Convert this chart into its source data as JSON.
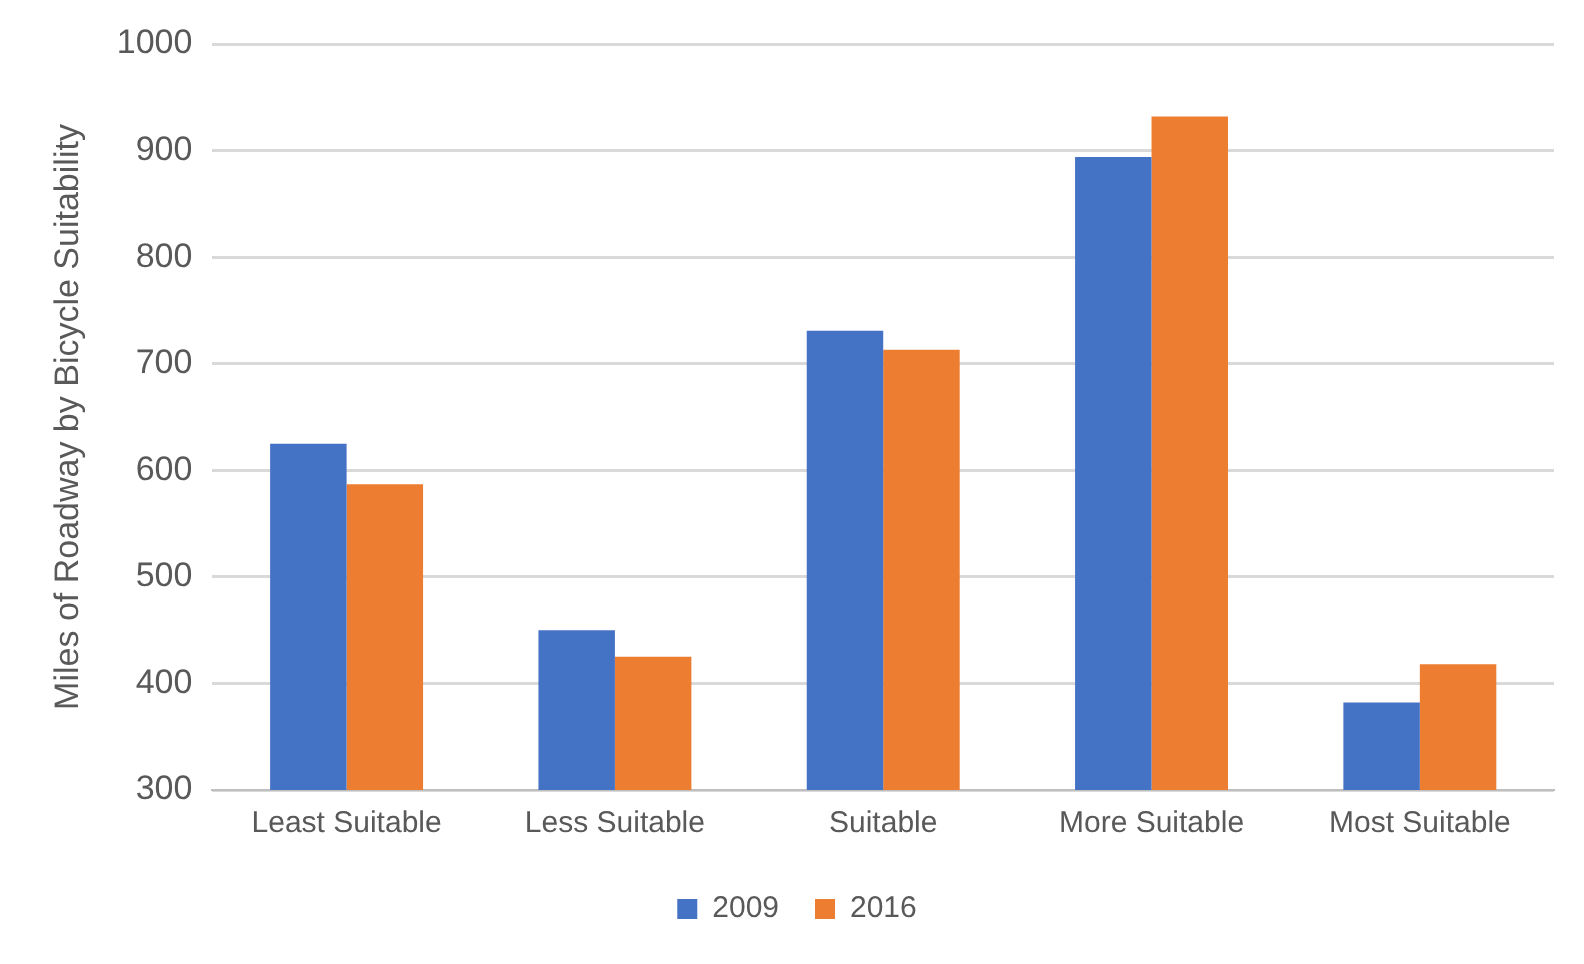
{
  "chart_data": {
    "type": "bar",
    "ylabel": "Miles of Roadway by Bicycle Suitability",
    "categories": [
      "Least Suitable",
      "Less Suitable",
      "Suitable",
      "More Suitable",
      "Most Suitable"
    ],
    "series": [
      {
        "name": "2009",
        "color": "#4472c4",
        "values": [
          625,
          450,
          731,
          894,
          382
        ]
      },
      {
        "name": "2016",
        "color": "#ed7d31",
        "values": [
          587,
          425,
          713,
          932,
          418
        ]
      }
    ],
    "ylim": [
      300,
      1000
    ],
    "yticks": [
      300,
      400,
      500,
      600,
      700,
      800,
      900,
      1000
    ],
    "grid": "y",
    "legend": "bottom"
  }
}
